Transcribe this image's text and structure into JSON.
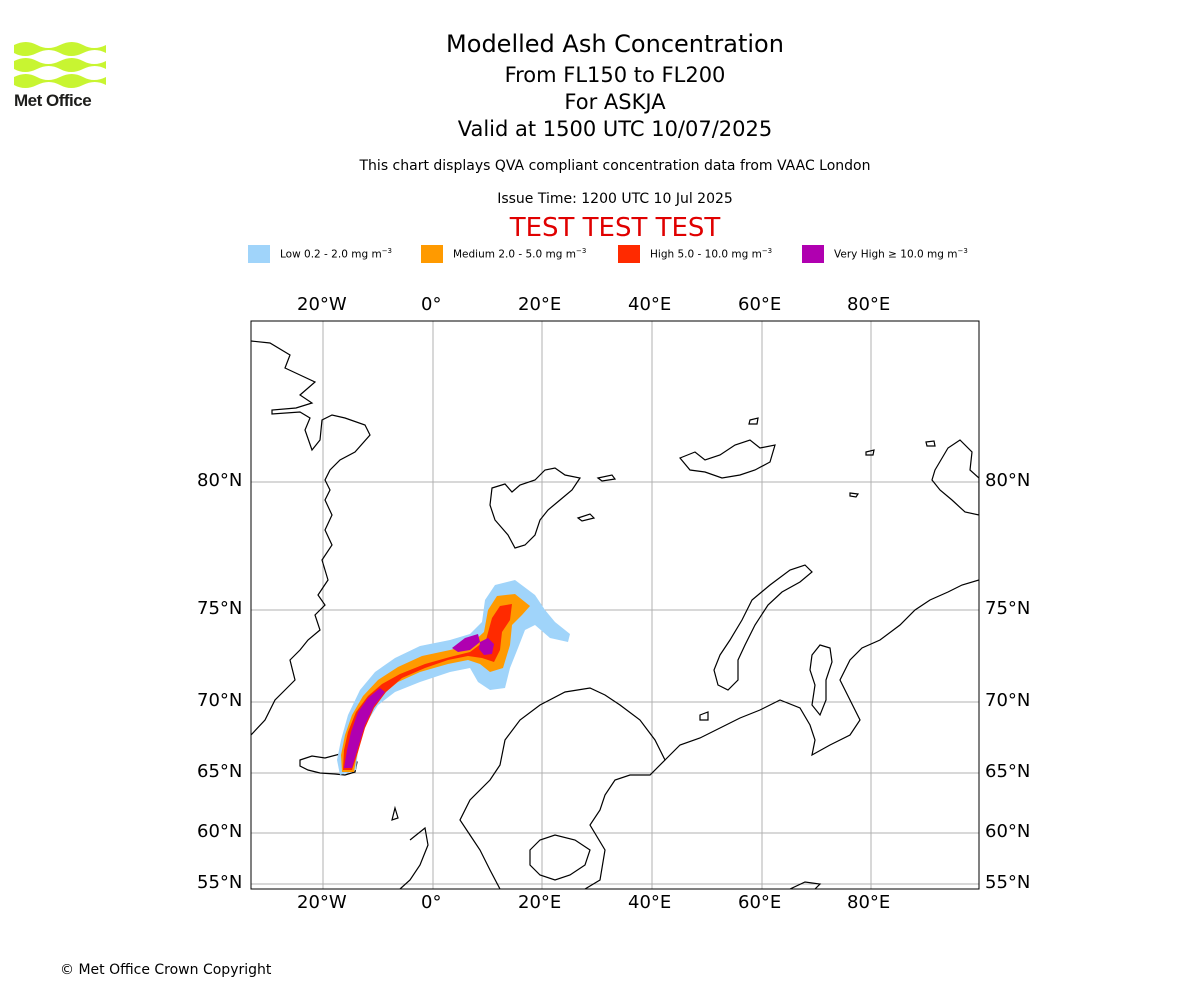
{
  "header": {
    "title": "Modelled Ash Concentration",
    "level_range": "From FL150 to FL200",
    "volcano": "For ASKJA",
    "validity": "Valid at 1500 UTC 10/07/2025",
    "description": "This chart displays QVA compliant concentration data from VAAC London",
    "issue_time": "Issue Time: 1200 UTC 10 Jul 2025",
    "test_banner": "TEST TEST TEST"
  },
  "logo": {
    "text": "Met Office",
    "color": "#c8f531"
  },
  "legend": [
    {
      "label": "Low 0.2 - 2.0 mg m",
      "exp": "−3",
      "color": "#a0d4fa"
    },
    {
      "label": "Medium 2.0 - 5.0 mg m",
      "exp": "−3",
      "color": "#ff9a00"
    },
    {
      "label": "High 5.0 - 10.0 mg m",
      "exp": "−3",
      "color": "#ff2a00"
    },
    {
      "label": "Very High ≥ 10.0 mg m",
      "exp": "−3",
      "color": "#b000b0"
    }
  ],
  "map": {
    "longitude_labels": [
      "20°W",
      "0°",
      "20°E",
      "40°E",
      "60°E",
      "80°E"
    ],
    "latitude_labels": [
      "80°N",
      "75°N",
      "70°N",
      "65°N",
      "60°N",
      "55°N"
    ]
  },
  "footer": {
    "copyright": "© Met Office Crown Copyright"
  }
}
